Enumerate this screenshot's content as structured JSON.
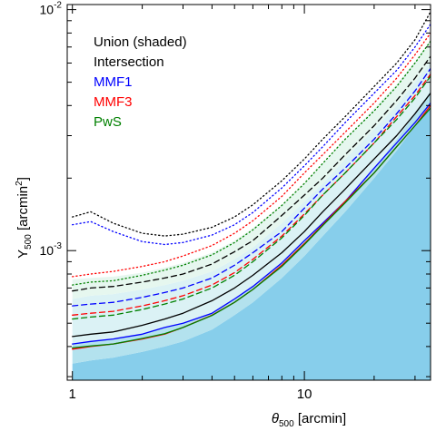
{
  "chart_data": {
    "type": "line",
    "xlabel": "θ",
    "xlabel_sub": "500",
    "xlabel_unit": " [arcmin]",
    "ylabel": "Y",
    "ylabel_sub": "500",
    "ylabel_unit_pre": " [arcmin",
    "ylabel_unit_sup": "2",
    "ylabel_unit_post": "]",
    "xscale": "log",
    "yscale": "log",
    "xlim": [
      0.95,
      35
    ],
    "ylim": [
      0.00029,
      0.0105
    ],
    "x_ticks_major": [
      1,
      10
    ],
    "x_tick_labels": [
      "1",
      "10"
    ],
    "y_ticks_major": [
      0.001,
      0.01
    ],
    "y_tick_labels": [
      {
        "base": "10",
        "exp": "-3"
      },
      {
        "base": "10",
        "exp": "-2"
      }
    ],
    "legend_position": "top-left",
    "legend": [
      {
        "label": "Union (shaded)",
        "color": "#000000"
      },
      {
        "label": "Intersection",
        "color": "#000000"
      },
      {
        "label": "MMF1",
        "color": "#0000ff"
      },
      {
        "label": "MMF3",
        "color": "#ff0000"
      },
      {
        "label": "PwS",
        "color": "#008000"
      }
    ],
    "x": [
      1.0,
      1.2,
      1.5,
      2.0,
      2.5,
      3.0,
      4.0,
      5.0,
      6.0,
      8.0,
      10.0,
      12.0,
      15.0,
      20.0,
      25.0,
      30.0,
      35.0
    ],
    "bands": [
      {
        "color": "#87ceeb",
        "lower_edge": "axis",
        "upper": [
          0.00034,
          0.00035,
          0.00036,
          0.00038,
          0.0004,
          0.00042,
          0.00047,
          0.00054,
          0.00061,
          0.00077,
          0.00095,
          0.00115,
          0.00145,
          0.002,
          0.0026,
          0.0033,
          0.0041
        ]
      },
      {
        "color": "#b3e2ee",
        "lower": [
          0.00034,
          0.00035,
          0.00036,
          0.00038,
          0.0004,
          0.00042,
          0.00047,
          0.00054,
          0.00061,
          0.00077,
          0.00095,
          0.00115,
          0.00145,
          0.002,
          0.0026,
          0.0033,
          0.0041
        ],
        "upper": [
          0.00041,
          0.00042,
          0.00043,
          0.00045,
          0.00048,
          0.0005,
          0.00055,
          0.00063,
          0.00071,
          0.00089,
          0.0011,
          0.0013,
          0.0016,
          0.0022,
          0.0029,
          0.0037,
          0.0046
        ]
      },
      {
        "color": "#dbf2f5",
        "lower": [
          0.00041,
          0.00042,
          0.00043,
          0.00045,
          0.00048,
          0.0005,
          0.00055,
          0.00063,
          0.00071,
          0.00089,
          0.0011,
          0.0013,
          0.0016,
          0.0022,
          0.0029,
          0.0037,
          0.0046
        ],
        "upper": [
          0.00063,
          0.00065,
          0.00066,
          0.00069,
          0.00072,
          0.00075,
          0.00082,
          0.00092,
          0.00103,
          0.0013,
          0.0016,
          0.0019,
          0.0024,
          0.0032,
          0.004,
          0.005,
          0.0061
        ]
      },
      {
        "color": "#e6f7ef",
        "lower": [
          0.00063,
          0.00065,
          0.00066,
          0.00069,
          0.00072,
          0.00075,
          0.00082,
          0.00092,
          0.00103,
          0.0013,
          0.0016,
          0.0019,
          0.0024,
          0.0032,
          0.004,
          0.005,
          0.0061
        ],
        "upper": [
          0.00076,
          0.00077,
          0.00078,
          0.00081,
          0.00085,
          0.00089,
          0.00098,
          0.0011,
          0.00124,
          0.00155,
          0.0019,
          0.0023,
          0.0029,
          0.0039,
          0.0049,
          0.0061,
          0.0075
        ]
      }
    ],
    "series": [
      {
        "color": "#000000",
        "dash": "solid",
        "values": [
          0.00044,
          0.00045,
          0.00046,
          0.00049,
          0.00052,
          0.00055,
          0.00062,
          0.0007,
          0.00079,
          0.00098,
          0.0012,
          0.00145,
          0.0018,
          0.0024,
          0.003,
          0.0037,
          0.0045
        ]
      },
      {
        "color": "#0000ff",
        "dash": "solid",
        "values": [
          0.00041,
          0.00042,
          0.00043,
          0.00045,
          0.00048,
          0.0005,
          0.00055,
          0.00063,
          0.00071,
          0.00089,
          0.0011,
          0.0013,
          0.0016,
          0.0022,
          0.0028,
          0.0034,
          0.0041
        ]
      },
      {
        "color": "#ff0000",
        "dash": "solid",
        "values": [
          0.00039,
          0.0004,
          0.00041,
          0.00043,
          0.00045,
          0.00048,
          0.00054,
          0.00061,
          0.00069,
          0.00087,
          0.00107,
          0.00128,
          0.0016,
          0.0021,
          0.0027,
          0.0033,
          0.004
        ]
      },
      {
        "color": "#008000",
        "dash": "solid",
        "values": [
          0.000395,
          0.000402,
          0.00041,
          0.000432,
          0.000452,
          0.00048,
          0.000538,
          0.00061,
          0.00069,
          0.00086,
          0.00106,
          0.00127,
          0.00158,
          0.0021,
          0.0027,
          0.0033,
          0.0039
        ]
      },
      {
        "color": "#000000",
        "dash": "dashed",
        "values": [
          0.00068,
          0.0007,
          0.00071,
          0.00074,
          0.00077,
          0.0008,
          0.00088,
          0.00099,
          0.0011,
          0.0014,
          0.0017,
          0.002,
          0.0025,
          0.0033,
          0.0042,
          0.0052,
          0.0064
        ]
      },
      {
        "color": "#0000ff",
        "dash": "dashed",
        "values": [
          0.00059,
          0.0006,
          0.00061,
          0.00064,
          0.00067,
          0.0007,
          0.00077,
          0.00087,
          0.00098,
          0.0012,
          0.0015,
          0.0018,
          0.0022,
          0.0029,
          0.0037,
          0.0046,
          0.0057
        ]
      },
      {
        "color": "#ff0000",
        "dash": "dashed",
        "values": [
          0.00054,
          0.00055,
          0.00056,
          0.00059,
          0.00062,
          0.00065,
          0.00072,
          0.00081,
          0.00092,
          0.00115,
          0.00142,
          0.0017,
          0.0021,
          0.0028,
          0.0036,
          0.0044,
          0.0054
        ]
      },
      {
        "color": "#008000",
        "dash": "dashed",
        "values": [
          0.00052,
          0.00053,
          0.00054,
          0.00057,
          0.0006,
          0.00063,
          0.0007,
          0.00079,
          0.0009,
          0.00113,
          0.0014,
          0.0017,
          0.0021,
          0.0028,
          0.0035,
          0.0043,
          0.0053
        ]
      },
      {
        "color": "#000000",
        "dash": "dotted",
        "values": [
          0.00138,
          0.00145,
          0.0013,
          0.00118,
          0.00115,
          0.00117,
          0.00125,
          0.00138,
          0.00155,
          0.00195,
          0.0024,
          0.0029,
          0.0036,
          0.0048,
          0.006,
          0.0075,
          0.0098
        ]
      },
      {
        "color": "#0000ff",
        "dash": "dotted",
        "values": [
          0.00128,
          0.00132,
          0.0012,
          0.00109,
          0.00106,
          0.00108,
          0.00116,
          0.00128,
          0.00144,
          0.00182,
          0.00225,
          0.0027,
          0.0034,
          0.0045,
          0.0056,
          0.007,
          0.0087
        ]
      },
      {
        "color": "#ff0000",
        "dash": "dotted",
        "values": [
          0.00078,
          0.0008,
          0.00082,
          0.00086,
          0.0009,
          0.00095,
          0.00105,
          0.00118,
          0.00133,
          0.00168,
          0.0021,
          0.0025,
          0.0031,
          0.0041,
          0.0052,
          0.0065,
          0.008
        ]
      },
      {
        "color": "#008000",
        "dash": "dotted",
        "values": [
          0.00072,
          0.00074,
          0.00075,
          0.00079,
          0.00083,
          0.00087,
          0.00096,
          0.00108,
          0.00122,
          0.00154,
          0.0019,
          0.0023,
          0.0029,
          0.0038,
          0.0048,
          0.006,
          0.0074
        ]
      }
    ]
  }
}
